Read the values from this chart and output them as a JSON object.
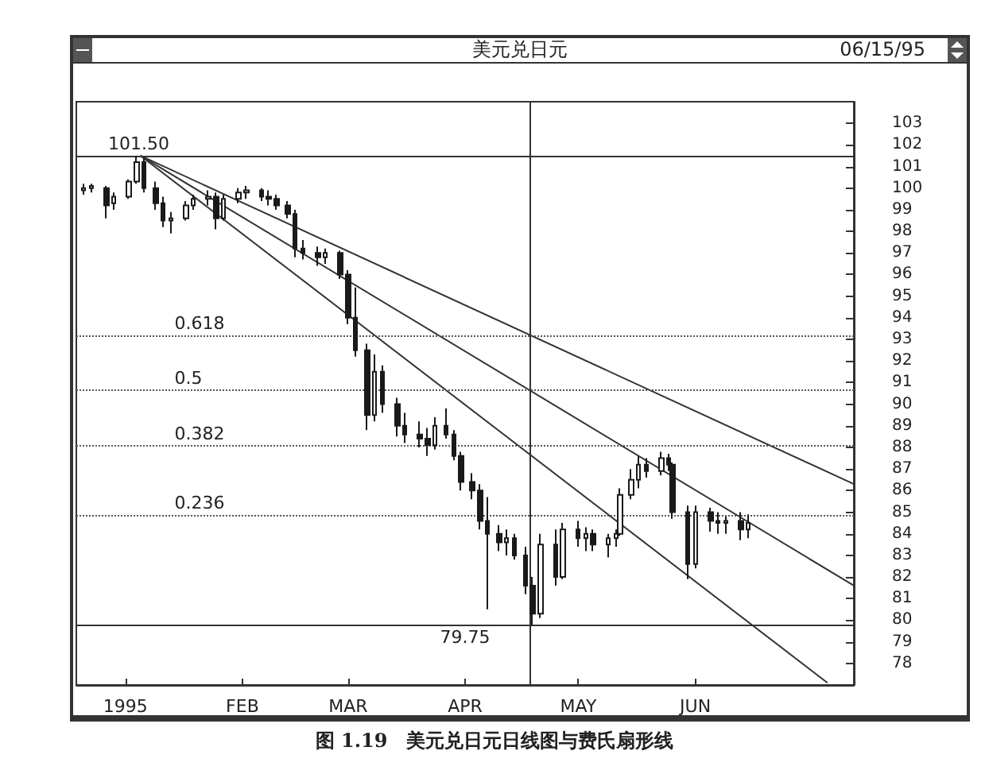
{
  "chart_data": {
    "type": "candlestick",
    "title": "美元兑日元",
    "subtitle": "06/15/95",
    "annotations": [
      "图 1.19　美元兑日元日线图与费氏扇形线",
      {
        "text": "0.618",
        "x": "1995-01-14",
        "y": 93.19
      },
      {
        "text": "0.5",
        "x": "1995-01-14",
        "y": 90.63
      },
      {
        "text": "0.382",
        "x": "1995-01-14",
        "y": 88.06
      },
      {
        "text": "0.236",
        "x": "1995-01-14",
        "y": 84.88
      }
    ],
    "color": "#1a1a1a",
    "x": [
      "1994-12-21",
      "1994-12-23",
      "1994-12-27",
      "1994-12-29",
      "1995-01-02",
      "1995-01-04",
      "1995-01-06",
      "1995-01-09",
      "1995-01-11",
      "1995-01-13",
      "1995-01-17",
      "1995-01-19",
      "1995-01-23",
      "1995-01-25",
      "1995-01-27",
      "1995-01-31",
      "1995-02-02",
      "1995-02-06",
      "1995-02-08",
      "1995-02-10",
      "1995-02-13",
      "1995-02-15",
      "1995-02-17",
      "1995-02-21",
      "1995-02-23",
      "1995-02-27",
      "1995-03-01",
      "1995-03-03",
      "1995-03-06",
      "1995-03-08",
      "1995-03-10",
      "1995-03-14",
      "1995-03-16",
      "1995-03-20",
      "1995-03-22",
      "1995-03-24",
      "1995-03-27",
      "1995-03-29",
      "1995-03-31",
      "1995-04-03",
      "1995-04-05",
      "1995-04-07",
      "1995-04-10",
      "1995-04-12",
      "1995-04-14",
      "1995-04-17",
      "1995-04-19",
      "1995-04-21",
      "1995-04-25",
      "1995-04-27",
      "1995-05-01",
      "1995-05-03",
      "1995-05-05",
      "1995-05-09",
      "1995-05-11",
      "1995-05-12",
      "1995-05-15",
      "1995-05-17",
      "1995-05-19",
      "1995-05-23",
      "1995-05-25",
      "1995-05-26",
      "1995-05-30",
      "1995-06-01",
      "1995-06-05",
      "1995-06-07",
      "1995-06-09",
      "1995-06-13",
      "1995-06-15"
    ],
    "ohlc": [
      [
        99.9,
        100.2,
        99.7,
        100.0
      ],
      [
        100.0,
        100.2,
        99.8,
        100.1
      ],
      [
        100.0,
        100.1,
        98.6,
        99.2
      ],
      [
        99.3,
        99.8,
        99.0,
        99.6
      ],
      [
        99.6,
        100.4,
        99.5,
        100.3
      ],
      [
        100.3,
        101.5,
        100.2,
        101.2
      ],
      [
        101.2,
        101.4,
        99.8,
        100.0
      ],
      [
        100.0,
        100.3,
        99.0,
        99.3
      ],
      [
        99.3,
        99.6,
        98.2,
        98.5
      ],
      [
        98.5,
        98.9,
        97.9,
        98.6
      ],
      [
        98.6,
        99.4,
        98.5,
        99.2
      ],
      [
        99.2,
        99.7,
        99.0,
        99.5
      ],
      [
        99.5,
        99.9,
        99.2,
        99.6
      ],
      [
        99.6,
        99.8,
        98.1,
        98.6
      ],
      [
        98.6,
        99.7,
        98.5,
        99.5
      ],
      [
        99.5,
        100.0,
        99.3,
        99.8
      ],
      [
        99.8,
        100.1,
        99.5,
        99.9
      ],
      [
        99.9,
        100.0,
        99.4,
        99.6
      ],
      [
        99.6,
        99.9,
        99.2,
        99.5
      ],
      [
        99.5,
        99.7,
        99.0,
        99.2
      ],
      [
        99.2,
        99.4,
        98.6,
        98.8
      ],
      [
        98.8,
        99.0,
        96.8,
        97.2
      ],
      [
        97.2,
        97.6,
        96.7,
        97.0
      ],
      [
        97.0,
        97.3,
        96.4,
        96.8
      ],
      [
        96.8,
        97.2,
        96.5,
        97.0
      ],
      [
        97.0,
        97.1,
        95.8,
        96.0
      ],
      [
        96.0,
        96.2,
        93.7,
        94.0
      ],
      [
        94.0,
        95.4,
        92.2,
        92.5
      ],
      [
        92.5,
        92.8,
        88.8,
        89.5
      ],
      [
        89.5,
        92.3,
        89.2,
        91.5
      ],
      [
        91.5,
        91.8,
        89.6,
        90.0
      ],
      [
        90.0,
        90.3,
        88.5,
        89.0
      ],
      [
        89.0,
        89.6,
        88.2,
        88.6
      ],
      [
        88.6,
        89.2,
        88.0,
        88.4
      ],
      [
        88.4,
        88.9,
        87.6,
        88.1
      ],
      [
        88.1,
        89.4,
        87.9,
        89.0
      ],
      [
        89.0,
        89.8,
        88.4,
        88.6
      ],
      [
        88.6,
        88.8,
        87.4,
        87.6
      ],
      [
        87.6,
        87.8,
        86.0,
        86.4
      ],
      [
        86.4,
        86.8,
        85.6,
        86.0
      ],
      [
        86.0,
        86.3,
        84.2,
        84.6
      ],
      [
        84.6,
        85.7,
        80.5,
        84.0
      ],
      [
        84.0,
        84.4,
        83.2,
        83.6
      ],
      [
        83.6,
        84.2,
        83.0,
        83.8
      ],
      [
        83.8,
        84.0,
        82.8,
        83.0
      ],
      [
        83.0,
        83.4,
        81.2,
        81.6
      ],
      [
        81.6,
        82.0,
        79.75,
        80.3
      ],
      [
        80.3,
        84.0,
        80.1,
        83.5
      ],
      [
        83.5,
        84.2,
        81.6,
        82.0
      ],
      [
        82.0,
        84.5,
        81.9,
        84.2
      ],
      [
        84.2,
        84.6,
        83.4,
        83.8
      ],
      [
        83.8,
        84.3,
        83.2,
        84.0
      ],
      [
        84.0,
        84.2,
        83.2,
        83.5
      ],
      [
        83.5,
        84.0,
        82.9,
        83.8
      ],
      [
        83.8,
        84.2,
        83.4,
        84.0
      ],
      [
        84.0,
        86.1,
        83.9,
        85.8
      ],
      [
        85.8,
        87.0,
        85.6,
        86.5
      ],
      [
        86.5,
        87.6,
        86.1,
        87.2
      ],
      [
        87.2,
        87.5,
        86.6,
        86.9
      ],
      [
        86.9,
        87.8,
        86.7,
        87.5
      ],
      [
        87.5,
        87.7,
        86.9,
        87.2
      ],
      [
        87.2,
        87.3,
        84.7,
        85.0
      ],
      [
        85.0,
        85.3,
        81.9,
        82.6
      ],
      [
        82.6,
        85.3,
        82.4,
        85.0
      ],
      [
        85.0,
        85.2,
        84.1,
        84.6
      ],
      [
        84.6,
        85.0,
        84.0,
        84.5
      ],
      [
        84.5,
        84.8,
        84.0,
        84.6
      ],
      [
        84.6,
        85.0,
        83.7,
        84.2
      ],
      [
        84.2,
        84.9,
        83.8,
        84.5
      ]
    ],
    "series": [
      {
        "type": "line",
        "color": "#333333",
        "x": [
          "1995-01-05",
          "1995-07-13"
        ],
        "values": [
          101.5,
          86.3
        ]
      },
      {
        "type": "line",
        "color": "#333333",
        "x": [
          "1995-01-05",
          "1995-07-13"
        ],
        "values": [
          101.5,
          81.6
        ]
      },
      {
        "type": "line",
        "color": "#333333",
        "x": [
          "1995-01-05",
          "1995-07-06"
        ],
        "values": [
          101.5,
          77.1
        ]
      }
    ],
    "ref_lines": [
      {
        "axis": "y",
        "value": 101.5,
        "label": "101.50",
        "color": "#333333",
        "line_style": "solid"
      },
      {
        "axis": "y",
        "value": 79.75,
        "label": "79.75",
        "color": "#333333",
        "line_style": "solid"
      },
      {
        "axis": "y",
        "value": 93.19,
        "color": "#555555",
        "line_style": "dotted"
      },
      {
        "axis": "y",
        "value": 90.63,
        "color": "#555555",
        "line_style": "dotted"
      },
      {
        "axis": "y",
        "value": 88.06,
        "color": "#555555",
        "line_style": "dotted"
      },
      {
        "axis": "y",
        "value": 84.88,
        "color": "#555555",
        "line_style": "dotted"
      },
      {
        "axis": "x",
        "value": "1995-04-18",
        "color": "#333333",
        "line_style": "solid"
      }
    ],
    "xlim": [
      "1994-12-19",
      "1995-07-13"
    ],
    "xticks": [
      {
        "value": "1995-01-01",
        "label": "1995"
      },
      {
        "value": "1995-02-01",
        "label": "FEB"
      },
      {
        "value": "1995-03-01",
        "label": "MAR"
      },
      {
        "value": "1995-04-01",
        "label": "APR"
      },
      {
        "value": "1995-05-01",
        "label": "MAY"
      },
      {
        "value": "1995-06-01",
        "label": "JUN"
      }
    ],
    "ylim": [
      77,
      104
    ],
    "yticks": [
      78,
      79,
      80,
      81,
      82,
      83,
      84,
      85,
      86,
      87,
      88,
      89,
      90,
      91,
      92,
      93,
      94,
      95,
      96,
      97,
      98,
      99,
      100,
      101,
      102,
      103
    ],
    "grid": false
  }
}
